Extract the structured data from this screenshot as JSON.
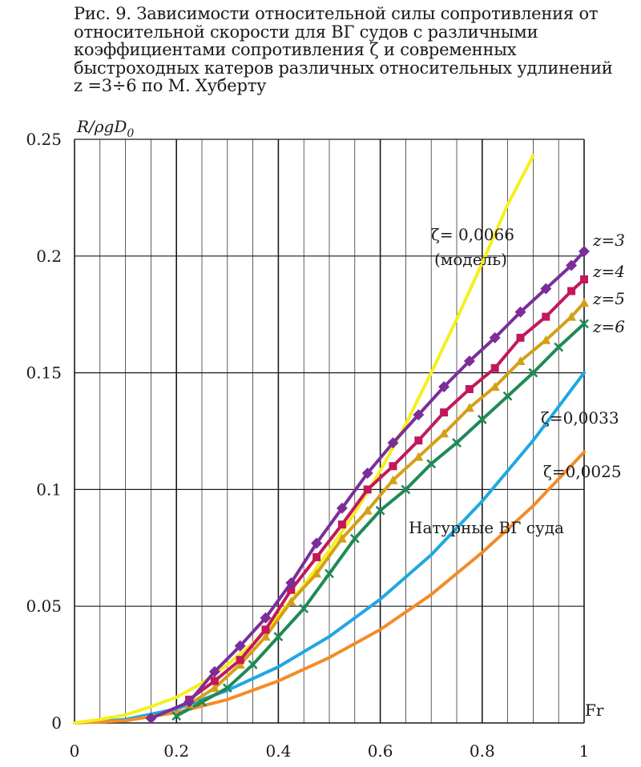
{
  "caption": {
    "line1": "Рис. 9. Зависимости относительной силы сопротивления от",
    "line2": "относительной скорости для ВГ судов с различными",
    "line3": "коэффициентами сопротивления ζ и современных",
    "line4": "быстроходных катеров различных относительных удлинений",
    "line5": "z =3÷6 по М. Хуберту"
  },
  "chart_data": {
    "type": "line",
    "ylabel": "R/ρgD0",
    "xlabel": "Fr",
    "xlim": [
      0,
      1
    ],
    "ylim": [
      0,
      0.25
    ],
    "x_ticks": [
      "0",
      "0.2",
      "0.4",
      "0.6",
      "0.8",
      "1"
    ],
    "y_ticks": [
      "0",
      "0.05",
      "0.1",
      "0.15",
      "0.2",
      "0.25"
    ],
    "grid": true,
    "annotations": {
      "zeta_model_1": "ζ= 0,0066",
      "zeta_model_2": "(модель)",
      "zeta_0033": "ζ=0,0033",
      "zeta_0025": "ζ=0,0025",
      "natural": "Натурные ВГ суда",
      "z3": "z=3",
      "z4": "z=4",
      "z5": "z=5",
      "z6": "z=6"
    },
    "series": [
      {
        "name": "ζ= 0,0066 (модель)",
        "color": "#f6ef1d",
        "marker": "none",
        "x": [
          0,
          0.05,
          0.1,
          0.15,
          0.2,
          0.25,
          0.3,
          0.35,
          0.4,
          0.45,
          0.5,
          0.55,
          0.6,
          0.65,
          0.7,
          0.75,
          0.8,
          0.85,
          0.9
        ],
        "y": [
          0,
          0.0015,
          0.0035,
          0.007,
          0.011,
          0.017,
          0.025,
          0.034,
          0.046,
          0.059,
          0.074,
          0.09,
          0.108,
          0.128,
          0.15,
          0.173,
          0.197,
          0.222,
          0.243
        ]
      },
      {
        "name": "z=3",
        "color": "#7b2e9a",
        "marker": "diamond",
        "x": [
          0.15,
          0.225,
          0.275,
          0.325,
          0.375,
          0.425,
          0.475,
          0.525,
          0.575,
          0.625,
          0.675,
          0.725,
          0.775,
          0.825,
          0.875,
          0.925,
          0.975,
          1.0
        ],
        "y": [
          0.002,
          0.009,
          0.022,
          0.033,
          0.045,
          0.06,
          0.077,
          0.092,
          0.107,
          0.12,
          0.132,
          0.144,
          0.155,
          0.165,
          0.176,
          0.186,
          0.196,
          0.202
        ]
      },
      {
        "name": "z=4",
        "color": "#c2185b",
        "marker": "square",
        "x": [
          0.225,
          0.275,
          0.325,
          0.375,
          0.425,
          0.475,
          0.525,
          0.575,
          0.625,
          0.675,
          0.725,
          0.775,
          0.825,
          0.875,
          0.925,
          0.975,
          1.0
        ],
        "y": [
          0.01,
          0.018,
          0.027,
          0.04,
          0.057,
          0.071,
          0.085,
          0.1,
          0.11,
          0.121,
          0.133,
          0.143,
          0.152,
          0.165,
          0.174,
          0.185,
          0.19
        ]
      },
      {
        "name": "z=5",
        "color": "#d4a017",
        "marker": "triangle",
        "x": [
          0.225,
          0.275,
          0.325,
          0.375,
          0.425,
          0.475,
          0.525,
          0.575,
          0.625,
          0.675,
          0.725,
          0.775,
          0.825,
          0.875,
          0.925,
          0.975,
          1.0
        ],
        "y": [
          0.008,
          0.015,
          0.025,
          0.037,
          0.052,
          0.064,
          0.079,
          0.091,
          0.104,
          0.114,
          0.124,
          0.135,
          0.144,
          0.155,
          0.164,
          0.174,
          0.18
        ]
      },
      {
        "name": "z=6",
        "color": "#1e8a55",
        "marker": "x",
        "x": [
          0.2,
          0.25,
          0.3,
          0.35,
          0.4,
          0.45,
          0.5,
          0.55,
          0.6,
          0.65,
          0.7,
          0.75,
          0.8,
          0.85,
          0.9,
          0.95,
          1.0
        ],
        "y": [
          0.003,
          0.009,
          0.015,
          0.025,
          0.037,
          0.049,
          0.064,
          0.079,
          0.091,
          0.1,
          0.111,
          0.12,
          0.13,
          0.14,
          0.15,
          0.161,
          0.171
        ]
      },
      {
        "name": "ζ=0,0033",
        "color": "#1fa8e0",
        "marker": "none",
        "x": [
          0,
          0.1,
          0.2,
          0.3,
          0.4,
          0.5,
          0.6,
          0.7,
          0.8,
          0.9,
          1.0
        ],
        "y": [
          0,
          0.0015,
          0.006,
          0.014,
          0.024,
          0.037,
          0.053,
          0.072,
          0.095,
          0.121,
          0.15
        ]
      },
      {
        "name": "ζ=0,0025",
        "color": "#f28c28",
        "marker": "none",
        "x": [
          0,
          0.1,
          0.2,
          0.3,
          0.4,
          0.5,
          0.6,
          0.7,
          0.8,
          0.9,
          1.0
        ],
        "y": [
          0,
          0.001,
          0.0045,
          0.01,
          0.018,
          0.028,
          0.04,
          0.055,
          0.073,
          0.093,
          0.116
        ]
      }
    ]
  }
}
